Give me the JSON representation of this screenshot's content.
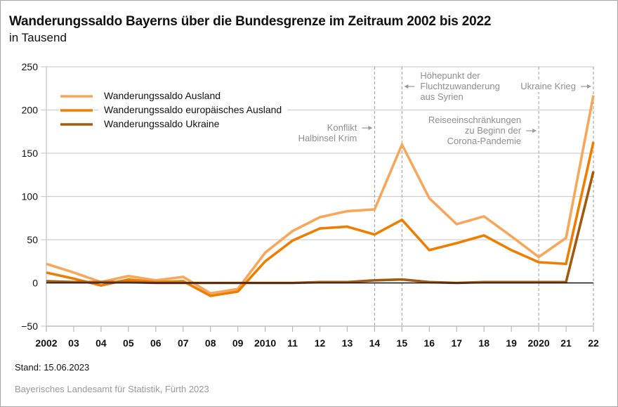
{
  "header": {
    "title": "Wanderungssaldo Bayerns über die Bundesgrenze im Zeitraum 2002 bis 2022",
    "subtitle": "in Tausend"
  },
  "footer": {
    "stand": "Stand: 15.06.2023",
    "source": "Bayerisches Landesamt für Statistik, Fürth 2023"
  },
  "chart_data": {
    "type": "line",
    "title": "Wanderungssaldo Bayerns über die Bundesgrenze im Zeitraum 2002 bis 2022",
    "subtitle": "in Tausend",
    "xlabel": "",
    "ylabel": "",
    "x": [
      2002,
      2003,
      2004,
      2005,
      2006,
      2007,
      2008,
      2009,
      2010,
      2011,
      2012,
      2013,
      2014,
      2015,
      2016,
      2017,
      2018,
      2019,
      2020,
      2021,
      2022
    ],
    "x_tick_labels": [
      "2002",
      "03",
      "04",
      "05",
      "06",
      "07",
      "08",
      "09",
      "2010",
      "11",
      "12",
      "13",
      "14",
      "15",
      "16",
      "17",
      "18",
      "19",
      "2020",
      "21",
      "22"
    ],
    "y_ticks": [
      -50,
      0,
      50,
      100,
      150,
      200,
      250
    ],
    "y_tick_labels": [
      "−50",
      "0",
      "50",
      "100",
      "150",
      "200",
      "250"
    ],
    "ylim": [
      -50,
      250
    ],
    "grid": true,
    "legend_position": "top-left",
    "series": [
      {
        "name": "Wanderungssaldo Ausland",
        "color": "#f8a65a",
        "values": [
          22,
          12,
          1,
          8,
          3,
          7,
          -12,
          -7,
          35,
          60,
          76,
          83,
          85,
          160,
          98,
          68,
          77,
          54,
          30,
          52,
          217
        ]
      },
      {
        "name": "Wanderungssaldo europäisches Ausland",
        "color": "#ef7d00",
        "values": [
          12,
          5,
          -3,
          4,
          1,
          2,
          -15,
          -10,
          25,
          49,
          63,
          65,
          56,
          73,
          38,
          46,
          55,
          38,
          24,
          22,
          163
        ]
      },
      {
        "name": "Wanderungssaldo Ukraine",
        "color": "#a35a0c",
        "values": [
          2,
          1,
          1,
          1,
          0,
          0,
          0,
          0,
          0,
          0,
          1,
          1,
          3,
          4,
          1,
          0,
          1,
          1,
          1,
          1,
          129
        ]
      }
    ],
    "annotations": [
      {
        "year": 2014,
        "lines": [
          "Konflikt",
          "Halbinsel Krim"
        ],
        "arrow": "right"
      },
      {
        "year": 2015,
        "lines": [
          "Höhepunkt der",
          "Fluchtzuwanderung",
          "aus Syrien"
        ],
        "arrow": "left"
      },
      {
        "year": 2020,
        "lines": [
          "Reiseeinschränkungen",
          "zu Beginn der",
          "Corona-Pandemie"
        ],
        "arrow": "right"
      },
      {
        "year": 2022,
        "lines": [
          "Ukraine Krieg"
        ],
        "arrow": "right"
      }
    ]
  }
}
